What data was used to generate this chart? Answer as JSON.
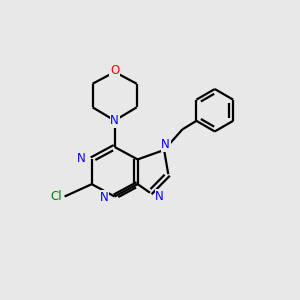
{
  "bg_color": "#e8e8e8",
  "bond_color": "#000000",
  "N_color": "#0000ff",
  "O_color": "#ff0000",
  "Cl_color": "#008000",
  "line_width": 1.6,
  "figsize": [
    3.0,
    3.0
  ],
  "dpi": 100,
  "xlim": [
    0,
    10
  ],
  "ylim": [
    0,
    10
  ]
}
